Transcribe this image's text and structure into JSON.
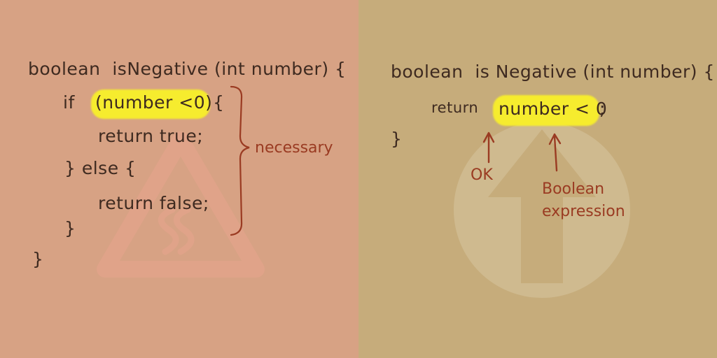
{
  "colors": {
    "left_background": "#D7A284",
    "right_background": "#C6AC7B",
    "ink": "#3E2A20",
    "annotation": "#9A3B22",
    "highlight": "#F6EC2E",
    "left_watermark": "#E8A48E",
    "right_watermark": "#D8C8A4"
  },
  "watermarks": {
    "left": "warning-triangle-icon",
    "right": "up-arrow-circle-icon"
  },
  "left": {
    "lines": [
      "boolean  isNegative (int number) {",
      "if",
      "(number <0)",
      "{",
      "return true;",
      "} else {",
      "return false;",
      "}",
      "}"
    ],
    "brace_label": "necessary"
  },
  "right": {
    "line1": "boolean  is Negative (int number) {",
    "return_keyword": "return",
    "expression": "number < 0",
    "semicolon": ";",
    "closing_brace": "}",
    "ok_label": "OK",
    "expression_label_line1": "Boolean",
    "expression_label_line2": "expression"
  }
}
